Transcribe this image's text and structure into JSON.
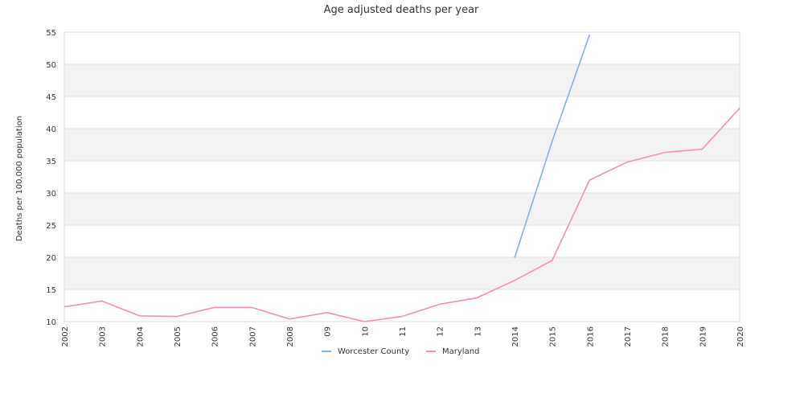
{
  "chart_data": {
    "type": "line",
    "title": "Age adjusted deaths per year",
    "xlabel": "",
    "ylabel": "Deaths per 100,000 population",
    "categories": [
      "2002",
      "2003",
      "2004",
      "2005",
      "2006",
      "2007",
      "2008",
      "09",
      "10",
      "11",
      "12",
      "13",
      "2014",
      "2015",
      "2016",
      "2017",
      "2018",
      "2019",
      "2020"
    ],
    "ylim": [
      10,
      55
    ],
    "yticks": [
      10,
      15,
      20,
      25,
      30,
      35,
      40,
      45,
      50,
      55
    ],
    "grid": "alternating horizontal bands",
    "legend_position": "bottom-center",
    "series": [
      {
        "name": "Worcester County",
        "color": "#7fb2e5",
        "values": [
          null,
          null,
          null,
          null,
          null,
          null,
          null,
          null,
          null,
          null,
          null,
          null,
          19.9,
          38.0,
          54.6,
          null,
          null,
          null,
          null
        ]
      },
      {
        "name": "Maryland",
        "color": "#f28fbe",
        "values": [
          12.3,
          13.2,
          10.9,
          10.8,
          12.2,
          12.2,
          10.4,
          11.4,
          10.0,
          10.8,
          12.7,
          13.7,
          16.4,
          19.5,
          32.0,
          34.8,
          36.3,
          36.8,
          43.2
        ]
      }
    ]
  }
}
